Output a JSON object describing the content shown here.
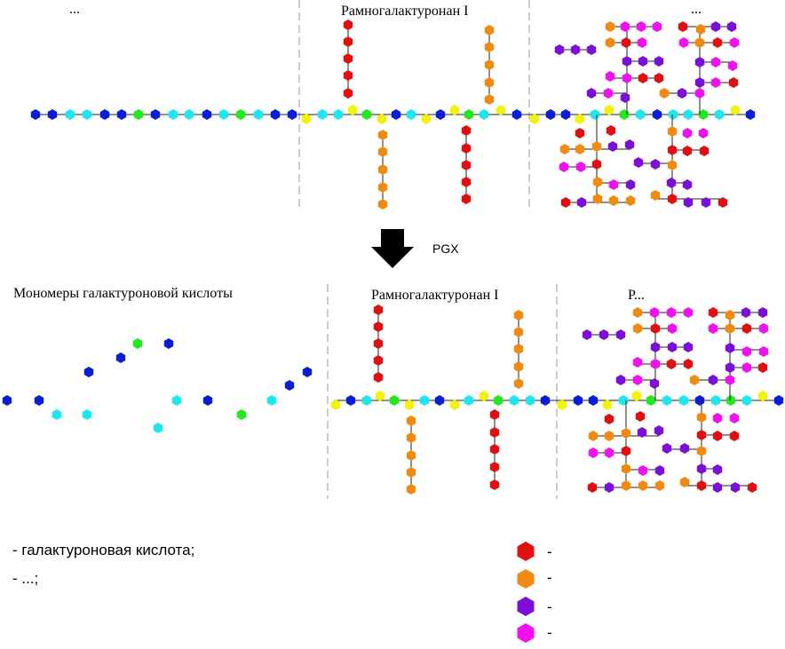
{
  "labels": {
    "top_left_cut": "...",
    "top_rg1": "Рамногалактуронан I",
    "top_right_cut": "...",
    "enzyme": "PGX",
    "monomers": "Мономеры галактуроновой кислоты",
    "bottom_rg1": "Рамногалактуронан I",
    "bottom_right_cut": "Р..."
  },
  "legend": {
    "left_items": [
      "- галактуроновая кислота;",
      "- ...;"
    ],
    "right_items": [
      "-",
      "-",
      "-",
      "-"
    ]
  },
  "icons": {
    "arrow": "down-arrow-icon",
    "monomer": "hexagon-icon"
  },
  "colors": {
    "blue": "#0a1ed6",
    "cyan": "#1ee6f0",
    "green": "#22e81e",
    "yellow": "#f2f20a",
    "red": "#e01010",
    "orange": "#f08a10",
    "purple": "#7a10d8",
    "magenta": "#f010f0"
  }
}
